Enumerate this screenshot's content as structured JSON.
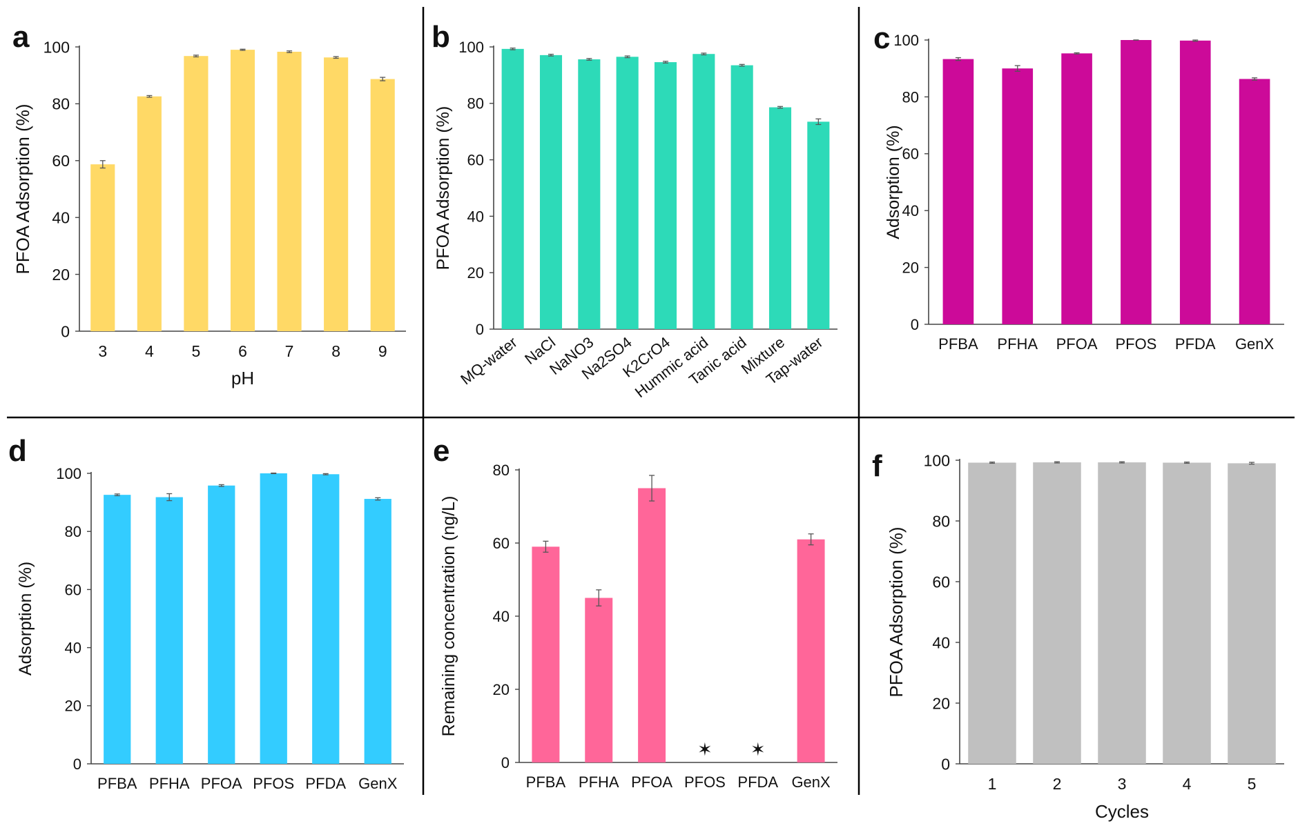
{
  "figure": {
    "panels": [
      {
        "letter": "a",
        "ylabel": "PFOA Adsorption (%)",
        "xlabel": "pH"
      },
      {
        "letter": "b",
        "ylabel": "PFOA Adsorption (%)",
        "xlabel": ""
      },
      {
        "letter": "c",
        "ylabel": "Adsorption (%)",
        "xlabel": ""
      },
      {
        "letter": "d",
        "ylabel": "Adsorption (%)",
        "xlabel": ""
      },
      {
        "letter": "e",
        "ylabel": "Remaining concentration (ng/L)",
        "xlabel": ""
      },
      {
        "letter": "f",
        "ylabel": "PFOA Adsorption (%)",
        "xlabel": "Cycles"
      }
    ]
  },
  "chart_data": [
    {
      "type": "bar",
      "panel": "a",
      "categories": [
        "3",
        "4",
        "5",
        "6",
        "7",
        "8",
        "9"
      ],
      "values": [
        58.7,
        82.6,
        96.8,
        99.0,
        98.3,
        96.3,
        88.7
      ],
      "errors": [
        1.3,
        0.3,
        0.3,
        0.2,
        0.3,
        0.3,
        0.6
      ],
      "xlabel": "pH",
      "ylabel": "PFOA Adsorption (%)",
      "ylim": [
        0,
        100
      ],
      "yticks": [
        0,
        20,
        40,
        60,
        80,
        100
      ],
      "color": "#FFD966",
      "grid": false
    },
    {
      "type": "bar",
      "panel": "b",
      "categories": [
        "MQ-water",
        "NaCl",
        "NaNO3",
        "Na2SO4",
        "K2CrO4",
        "Hummic acid",
        "Tanic acid",
        "Mixture",
        "Tap-water"
      ],
      "values": [
        99.3,
        97.1,
        95.6,
        96.5,
        94.6,
        97.5,
        93.5,
        78.6,
        73.5
      ],
      "errors": [
        0.3,
        0.3,
        0.3,
        0.3,
        0.3,
        0.3,
        0.3,
        0.3,
        1.0
      ],
      "xlabel": "",
      "ylabel": "PFOA Adsorption (%)",
      "ylim": [
        0,
        100
      ],
      "yticks": [
        0,
        20,
        40,
        60,
        80,
        100
      ],
      "color": "#2DDAB8",
      "grid": false
    },
    {
      "type": "bar",
      "panel": "c",
      "categories": [
        "PFBA",
        "PFHA",
        "PFOA",
        "PFOS",
        "PFDA",
        "GenX"
      ],
      "values": [
        93.3,
        90.0,
        95.3,
        100.0,
        99.8,
        86.3
      ],
      "errors": [
        0.5,
        1.0,
        0.2,
        0.0,
        0.2,
        0.4
      ],
      "xlabel": "",
      "ylabel": "Adsorption (%)",
      "ylim": [
        0,
        100
      ],
      "yticks": [
        0,
        20,
        40,
        60,
        80,
        100
      ],
      "color": "#CC0A99",
      "grid": false
    },
    {
      "type": "bar",
      "panel": "d",
      "categories": [
        "PFBA",
        "PFHA",
        "PFOA",
        "PFOS",
        "PFDA",
        "GenX"
      ],
      "values": [
        92.6,
        91.8,
        95.8,
        100.0,
        99.7,
        91.2
      ],
      "errors": [
        0.3,
        1.2,
        0.3,
        0.1,
        0.2,
        0.4
      ],
      "xlabel": "",
      "ylabel": "Adsorption (%)",
      "ylim": [
        0,
        100
      ],
      "yticks": [
        0,
        20,
        40,
        60,
        80,
        100
      ],
      "color": "#33CCFF",
      "grid": false
    },
    {
      "type": "bar",
      "panel": "e",
      "categories": [
        "PFBA",
        "PFHA",
        "PFOA",
        "PFOS",
        "PFDA",
        "GenX"
      ],
      "values": [
        59.0,
        45.0,
        75.0,
        0,
        0,
        61.0
      ],
      "errors": [
        1.5,
        2.2,
        3.5,
        0,
        0,
        1.5
      ],
      "star_markers": [
        "PFOS",
        "PFDA"
      ],
      "star_glyph": "✶",
      "xlabel": "",
      "ylabel": "Remaining concentration (ng/L)",
      "ylim": [
        0,
        80
      ],
      "yticks": [
        0,
        20,
        40,
        60,
        80
      ],
      "color": "#FF6699",
      "grid": false
    },
    {
      "type": "bar",
      "panel": "f",
      "categories": [
        "1",
        "2",
        "3",
        "4",
        "5"
      ],
      "values": [
        99.2,
        99.3,
        99.3,
        99.2,
        99.0
      ],
      "errors": [
        0.2,
        0.2,
        0.2,
        0.2,
        0.3
      ],
      "xlabel": "Cycles",
      "ylabel": "PFOA Adsorption (%)",
      "ylim": [
        0,
        100
      ],
      "yticks": [
        0,
        20,
        40,
        60,
        80,
        100
      ],
      "color": "#C0C0C0",
      "grid": false
    }
  ]
}
